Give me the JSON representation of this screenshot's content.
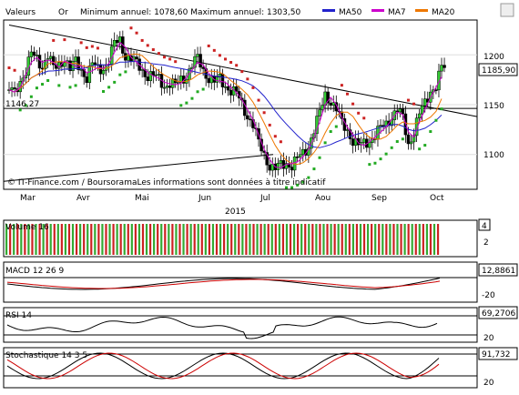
{
  "header": {
    "label_valeurs": "Valeurs",
    "label_instrument": "Or",
    "label_range": "Minimum annuel: 1078,60 Maximum annuel: 1303,50",
    "legend": [
      {
        "name": "MA50",
        "color": "#2222cc"
      },
      {
        "name": "MA7",
        "color": "#cc00cc"
      },
      {
        "name": "MA20",
        "color": "#ee7700"
      }
    ]
  },
  "chart_data": [
    {
      "type": "candlestick",
      "panel": "price",
      "ylim": [
        1065,
        1235
      ],
      "y_ticks": [
        1100,
        1150,
        1200
      ],
      "last_value": "1185,90",
      "left_label": "1146,27",
      "months": [
        "Mar",
        "Avr",
        "Mai",
        "Jun",
        "Jul",
        "Aou",
        "Sep",
        "Oct"
      ],
      "year": "2015",
      "source_text": "© IT-Finance.com / BoursoramaLes informations sont données à titre indicatif",
      "close_series": [
        1165,
        1160,
        1175,
        1185,
        1200,
        1195,
        1190,
        1200,
        1185,
        1190,
        1198,
        1185,
        1192,
        1186,
        1178,
        1190,
        1185,
        1188,
        1195,
        1210,
        1215,
        1200,
        1195,
        1190,
        1185,
        1180,
        1178,
        1175,
        1170,
        1172,
        1168,
        1175,
        1180,
        1190,
        1195,
        1185,
        1178,
        1172,
        1175,
        1170,
        1165,
        1160,
        1150,
        1140,
        1130,
        1110,
        1100,
        1090,
        1085,
        1088,
        1092,
        1090,
        1095,
        1100,
        1110,
        1125,
        1140,
        1160,
        1155,
        1145,
        1130,
        1125,
        1115,
        1108,
        1110,
        1115,
        1120,
        1125,
        1130,
        1140,
        1145,
        1135,
        1110,
        1125,
        1140,
        1150,
        1165,
        1170,
        1186
      ],
      "support_line": 1146.27
    },
    {
      "type": "bar",
      "panel": "volume",
      "label": "Volume 16",
      "y_ticks": [
        2,
        4
      ],
      "last_value": "4"
    },
    {
      "type": "line",
      "panel": "macd",
      "label": "MACD 12 26 9",
      "y_ticks": [
        0,
        -20
      ],
      "last_value": "12,8861"
    },
    {
      "type": "line",
      "panel": "rsi",
      "label": "RSI 14",
      "y_ticks": [
        80,
        20
      ],
      "last_value": "69,2706"
    },
    {
      "type": "line",
      "panel": "stochastic",
      "label": "Stochastique 14 3 5",
      "y_ticks": [
        80,
        20
      ],
      "last_value": "91,732"
    }
  ]
}
